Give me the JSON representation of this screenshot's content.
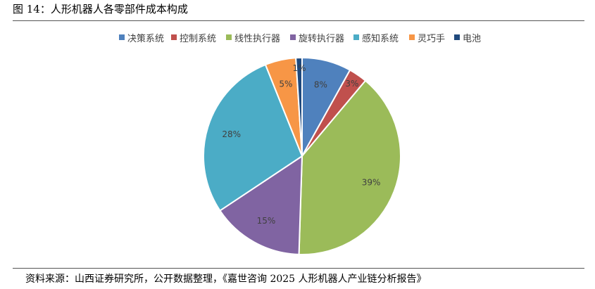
{
  "header": {
    "figure_title": "图 14：人形机器人各零部件成本构成"
  },
  "footer": {
    "source": "资料来源：山西证券研究所，公开数据整理，《嘉世咨询 2025 人形机器人产业链分析报告》"
  },
  "chart_data": {
    "type": "pie",
    "categories": [
      "决策系统",
      "控制系统",
      "线性执行器",
      "旋转执行器",
      "感知系统",
      "灵巧手",
      "电池"
    ],
    "values": [
      8,
      3,
      39,
      15,
      28,
      5,
      1
    ],
    "data_labels": [
      "8%",
      "3%",
      "39%",
      "15%",
      "28%",
      "5%",
      "1%"
    ],
    "unit": "%",
    "colors": [
      "#4F81BD",
      "#C0504D",
      "#9BBB59",
      "#8064A2",
      "#4BACC6",
      "#F79646",
      "#1F497D"
    ],
    "legend_position": "top",
    "start_angle": "12 o'clock",
    "direction": "clockwise"
  }
}
